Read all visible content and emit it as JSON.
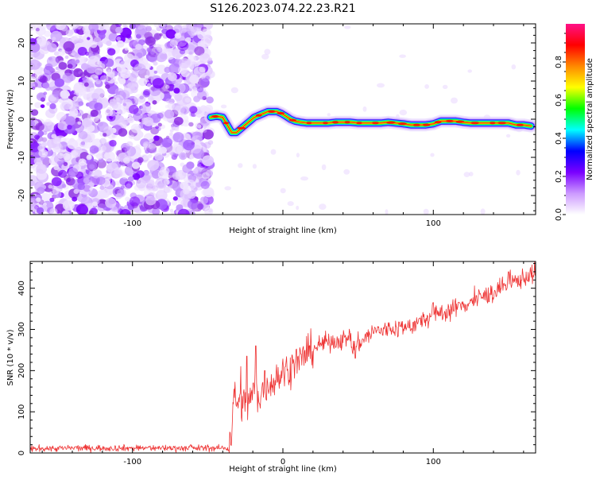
{
  "figure": {
    "title": "S126.2023.074.22.23.R21"
  },
  "chart_data": [
    {
      "type": "heatmap",
      "title": "",
      "xlabel": "Height of straight line (km)",
      "ylabel": "Frequency (Hz)",
      "xlim": [
        -168,
        168
      ],
      "ylim": [
        -25,
        25
      ],
      "xticks": [
        -100,
        0,
        100
      ],
      "xtick_labels": [
        "-100",
        "",
        "100"
      ],
      "yticks": [
        -20,
        -10,
        0,
        10,
        20
      ],
      "ytick_labels": [
        "-20",
        "-10",
        "0",
        "10",
        "20"
      ],
      "noise_region_x": [
        -168,
        -48
      ],
      "ridge": {
        "x": [
          -48,
          -44,
          -40,
          -37,
          -34,
          -31,
          -28,
          -25,
          -22,
          -19,
          -16,
          -13,
          -10,
          -7,
          -4,
          -1,
          2,
          5,
          8,
          12,
          16,
          20,
          25,
          30,
          35,
          40,
          45,
          50,
          55,
          60,
          65,
          70,
          75,
          80,
          85,
          90,
          95,
          100,
          105,
          110,
          115,
          120,
          125,
          130,
          135,
          140,
          145,
          150,
          155,
          160,
          165
        ],
        "y": [
          0.5,
          0.8,
          0.5,
          -1.5,
          -3.5,
          -3.5,
          -2.5,
          -1.5,
          -0.5,
          0.5,
          1.0,
          1.5,
          2.0,
          2.0,
          2.0,
          1.5,
          0.8,
          0.0,
          -0.5,
          -0.8,
          -1.0,
          -1.0,
          -1.0,
          -1.0,
          -0.8,
          -0.8,
          -0.8,
          -1.0,
          -1.0,
          -1.0,
          -1.0,
          -0.8,
          -1.0,
          -1.2,
          -1.5,
          -1.5,
          -1.5,
          -1.2,
          -0.5,
          -0.5,
          -0.5,
          -0.8,
          -1.0,
          -1.0,
          -1.0,
          -1.0,
          -1.0,
          -1.0,
          -1.5,
          -1.5,
          -1.8
        ]
      },
      "colorbar": {
        "label": "Normalized spectral amplitude",
        "range": [
          0,
          1
        ],
        "ticks": [
          0.0,
          0.2,
          0.4,
          0.6,
          0.8
        ],
        "tick_labels": [
          "0.0",
          "0.2",
          "0.4",
          "0.6",
          "0.8"
        ],
        "colors": [
          "#ffffff",
          "#cc99ff",
          "#7a00ff",
          "#0000ff",
          "#00ffff",
          "#00ff00",
          "#ffff00",
          "#ff8800",
          "#ff0000",
          "#ff1188"
        ]
      },
      "colors": {
        "noise": "#8a2be2",
        "ridge_center": "#ff2200"
      }
    },
    {
      "type": "line",
      "title": "",
      "xlabel": "Height of straight line (km)",
      "ylabel": "SNR (10 * v/v)",
      "xlim": [
        -168,
        168
      ],
      "ylim": [
        0,
        465
      ],
      "xticks": [
        -100,
        0,
        100
      ],
      "xtick_labels": [
        "-100",
        "0",
        "100"
      ],
      "yticks": [
        0,
        100,
        200,
        300,
        400
      ],
      "ytick_labels": [
        "0",
        "100",
        "200",
        "300",
        "400"
      ],
      "series": [
        {
          "color": "#ee3333",
          "x": [
            -168,
            -140,
            -100,
            -60,
            -40,
            -36,
            -34,
            -33,
            -30,
            -26,
            -22,
            -20,
            -18,
            -15,
            -12,
            -8,
            -4,
            0,
            5,
            10,
            15,
            20,
            30,
            40,
            45,
            46,
            48,
            50,
            55,
            60,
            70,
            80,
            90,
            100,
            110,
            120,
            130,
            140,
            150,
            160,
            168
          ],
          "y": [
            10,
            12,
            12,
            12,
            12,
            12,
            60,
            130,
            125,
            115,
            125,
            150,
            160,
            130,
            165,
            170,
            180,
            195,
            210,
            225,
            235,
            255,
            270,
            275,
            280,
            255,
            260,
            265,
            280,
            295,
            300,
            305,
            315,
            335,
            345,
            360,
            375,
            390,
            410,
            425,
            440
          ]
        }
      ],
      "noise_sd": [
        [
          -168,
          -36,
          4
        ],
        [
          -36,
          20,
          22
        ],
        [
          20,
          168,
          12
        ]
      ],
      "spikes": [
        [
          -18,
          260
        ],
        [
          -24,
          235
        ],
        [
          -28,
          210
        ],
        [
          -12,
          200
        ],
        [
          12,
          240
        ],
        [
          48,
          230
        ],
        [
          100,
          365
        ],
        [
          150,
          440
        ]
      ]
    }
  ]
}
